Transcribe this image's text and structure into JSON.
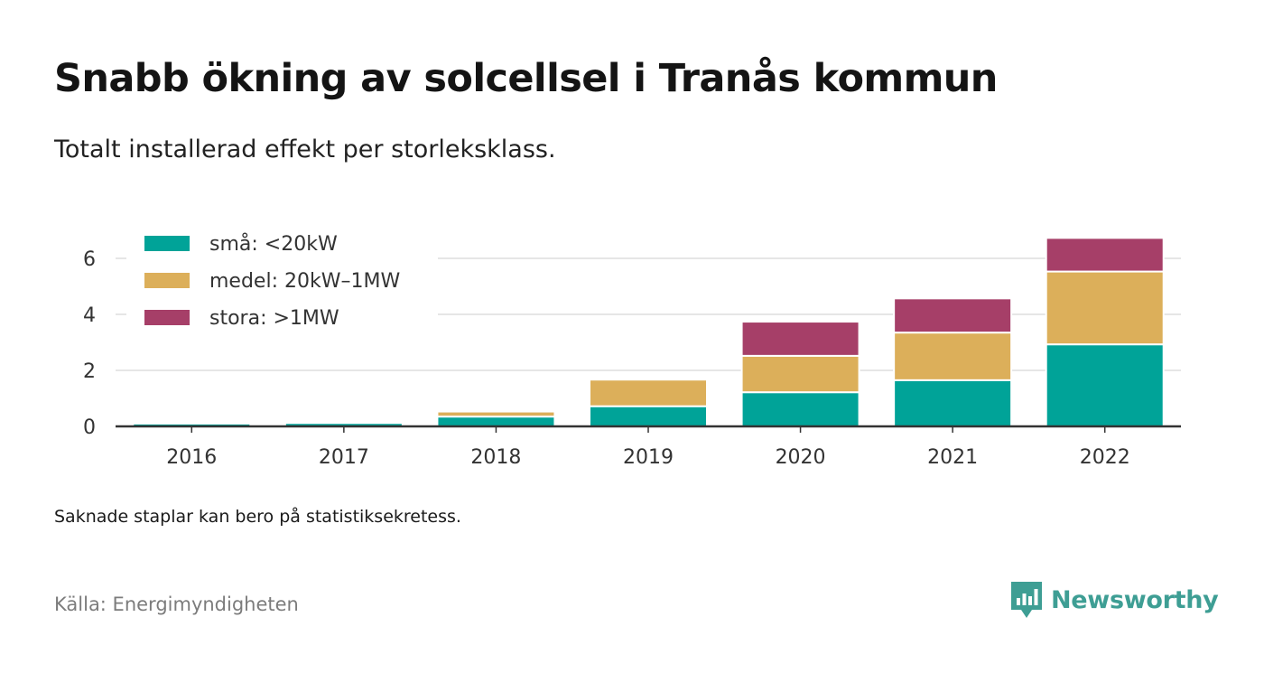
{
  "header": {
    "title": "Snabb ökning av solcellsel i Tranås kommun",
    "subtitle": "Totalt installerad effekt per storleksklass."
  },
  "footer": {
    "note": "Saknade staplar kan bero på statistiksekretess.",
    "source": "Källa: Energimyndigheten",
    "brand": "Newsworthy"
  },
  "colors": {
    "brand": "#3e9e94",
    "axis": "#333333",
    "grid": "#dddddd"
  },
  "chart_data": {
    "type": "bar",
    "stacked": true,
    "categories": [
      "2016",
      "2017",
      "2018",
      "2019",
      "2020",
      "2021",
      "2022"
    ],
    "series": [
      {
        "name": "små: <20kW",
        "color": "#00a398",
        "values": [
          0.1,
          0.12,
          0.35,
          0.72,
          1.22,
          1.65,
          2.93
        ]
      },
      {
        "name": "medel: 20kW–1MW",
        "color": "#dcaf5a",
        "values": [
          0,
          0,
          0.18,
          0.95,
          1.3,
          1.7,
          2.6
        ]
      },
      {
        "name": "stora: >1MW",
        "color": "#a63f68",
        "values": [
          0,
          0,
          0,
          0,
          1.22,
          1.22,
          1.2
        ]
      }
    ],
    "ylim": [
      0,
      7
    ],
    "yticks": [
      0,
      2,
      4,
      6
    ],
    "grid": true,
    "legend_position": "top-left"
  }
}
